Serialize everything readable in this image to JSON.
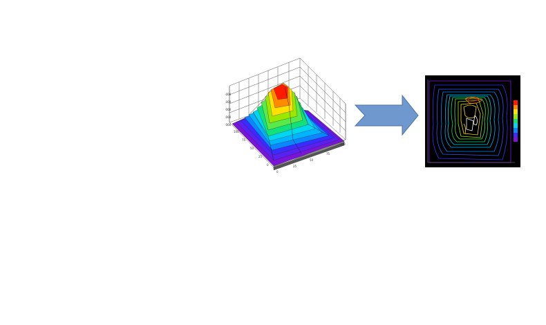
{
  "surface_plot": {
    "z_ticks": [
      "1000",
      "2000",
      "3000",
      "4000",
      "5000"
    ],
    "axis_a_ticks": [
      "100",
      "75",
      "50",
      "25",
      "0"
    ],
    "axis_b_ticks": [
      "0",
      "25",
      "50",
      "75",
      "100"
    ],
    "colors": [
      "#7a14d6",
      "#3a2cff",
      "#0a86ff",
      "#00d6f0",
      "#12e07a",
      "#9ae800",
      "#ffe000",
      "#ff8a00",
      "#ff1a00"
    ]
  },
  "arrow": {
    "fill": "#6f98cf",
    "stroke": "#4a73aa"
  },
  "contour_panel": {
    "background": "#000000",
    "colorbar": [
      "#ff1a00",
      "#ff8a00",
      "#ffe000",
      "#9ae800",
      "#12e07a",
      "#00d6f0",
      "#0a86ff",
      "#3a2cff",
      "#7a14d6"
    ]
  }
}
